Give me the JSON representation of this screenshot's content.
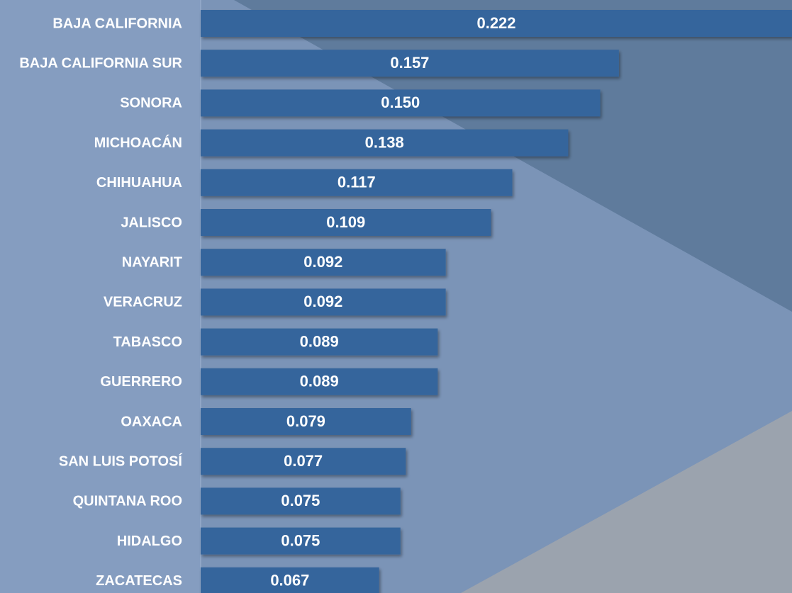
{
  "chart_data": {
    "type": "bar",
    "orientation": "horizontal",
    "color": "#34659c",
    "categories": [
      "BAJA CALIFORNIA",
      "BAJA CALIFORNIA SUR",
      "SONORA",
      "MICHOACÁN",
      "CHIHUAHUA",
      "JALISCO",
      "NAYARIT",
      "VERACRUZ",
      "TABASCO",
      "GUERRERO",
      "OAXACA",
      "SAN LUIS POTOSÍ",
      "QUINTANA ROO",
      "HIDALGO",
      "ZACATECAS"
    ],
    "values": [
      0.222,
      0.157,
      0.15,
      0.138,
      0.117,
      0.109,
      0.092,
      0.092,
      0.089,
      0.089,
      0.079,
      0.077,
      0.075,
      0.075,
      0.067
    ],
    "value_labels": [
      "0.222",
      "0.157",
      "0.150",
      "0.138",
      "0.117",
      "0.109",
      "0.092",
      "0.092",
      "0.089",
      "0.089",
      "0.079",
      "0.077",
      "0.075",
      "0.075",
      "0.067"
    ],
    "xlim": [
      0,
      0.222
    ]
  }
}
